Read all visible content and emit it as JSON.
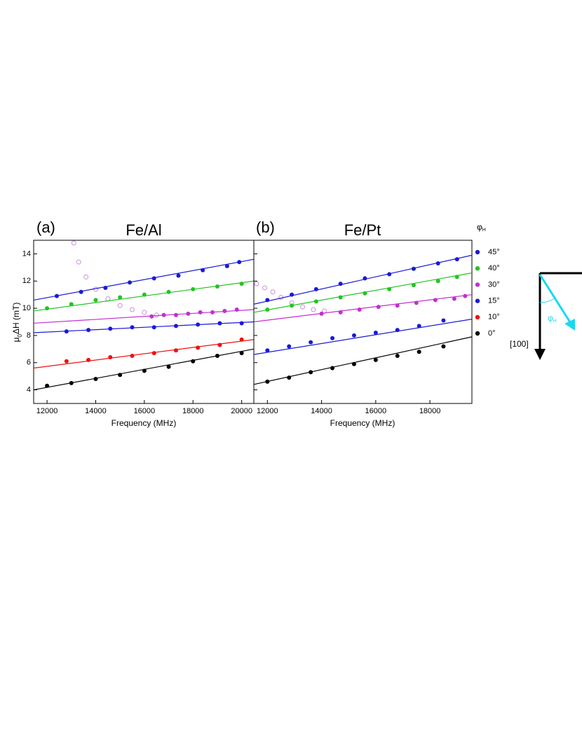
{
  "chart_data": [
    {
      "type": "scatter",
      "panel_label": "(a)",
      "title": "Fe/Al",
      "x_label": "Frequency (MHz)",
      "y_label": {
        "main": "μ",
        "sub": "0",
        "rest": "ΔH (mT)"
      },
      "legend_title": {
        "main": "φ",
        "sub": "H"
      },
      "xlim": [
        11450,
        20500
      ],
      "xticks": [
        12000,
        14000,
        16000,
        18000,
        20000
      ],
      "ylim": [
        3,
        15
      ],
      "yticks": [
        4,
        6,
        8,
        10,
        12,
        14
      ],
      "ytick_labels": true,
      "series": [
        {
          "name": "45°",
          "color": "#1a1ad6",
          "x": [
            12400,
            13400,
            14400,
            15400,
            16400,
            17400,
            18400,
            19400,
            19900
          ],
          "values": [
            10.9,
            11.2,
            11.5,
            11.9,
            12.2,
            12.4,
            12.8,
            13.1,
            13.4
          ],
          "fit": {
            "x": [
              11450,
              20500
            ],
            "values": [
              10.6,
              13.6
            ]
          }
        },
        {
          "name": "40°",
          "color": "#22c422",
          "x": [
            12000,
            13000,
            14000,
            15000,
            16000,
            17000,
            18000,
            19000,
            20000
          ],
          "values": [
            10.0,
            10.3,
            10.6,
            10.8,
            11.0,
            11.2,
            11.4,
            11.6,
            11.8
          ],
          "fit": {
            "x": [
              11450,
              20500
            ],
            "values": [
              9.8,
              12.0
            ]
          }
        },
        {
          "name": "30°",
          "color": "#c030d0",
          "x": [
            16300,
            16800,
            17300,
            17800,
            18300,
            18800,
            19300,
            19800
          ],
          "values": [
            9.4,
            9.5,
            9.5,
            9.6,
            9.7,
            9.7,
            9.8,
            9.9
          ],
          "fit": {
            "x": [
              11450,
              20500
            ],
            "values": [
              8.9,
              9.9
            ]
          }
        },
        {
          "name": "15°",
          "color": "#1a1ad6",
          "x": [
            12800,
            13700,
            14600,
            15500,
            16400,
            17300,
            18200,
            19100,
            20000
          ],
          "values": [
            8.3,
            8.4,
            8.5,
            8.6,
            8.6,
            8.7,
            8.8,
            8.9,
            8.9
          ],
          "fit": {
            "x": [
              11450,
              20500
            ],
            "values": [
              8.2,
              9.0
            ]
          }
        },
        {
          "name": "10°",
          "color": "#ee1111",
          "x": [
            12800,
            13700,
            14600,
            15500,
            16400,
            17300,
            18200,
            19100,
            20000
          ],
          "values": [
            6.1,
            6.2,
            6.4,
            6.5,
            6.7,
            6.9,
            7.1,
            7.3,
            7.7
          ],
          "fit": {
            "x": [
              11450,
              20500
            ],
            "values": [
              5.6,
              7.7
            ]
          }
        },
        {
          "name": "0°",
          "color": "#000000",
          "x": [
            12000,
            13000,
            14000,
            15000,
            16000,
            17000,
            18000,
            19000,
            20000
          ],
          "values": [
            4.3,
            4.5,
            4.8,
            5.1,
            5.4,
            5.7,
            6.1,
            6.5,
            6.7
          ],
          "fit": {
            "x": [
              11450,
              20500
            ],
            "values": [
              4.0,
              7.0
            ]
          }
        }
      ],
      "open_series": {
        "color": "#c98fd8",
        "x": [
          13100,
          13300,
          13600,
          14000,
          14500,
          15000,
          15500,
          16000,
          16500
        ],
        "values": [
          14.8,
          13.4,
          12.3,
          11.4,
          10.7,
          10.2,
          9.9,
          9.7,
          9.5
        ]
      }
    },
    {
      "type": "scatter",
      "panel_label": "(b)",
      "title": "Fe/Pt",
      "x_label": "Frequency (MHz)",
      "xlim": [
        11500,
        19550
      ],
      "xticks": [
        12000,
        14000,
        16000,
        18000
      ],
      "ylim": [
        3,
        15
      ],
      "yticks": [
        4,
        6,
        8,
        10,
        12,
        14
      ],
      "ytick_labels": false,
      "series": [
        {
          "color": "#1a1ad6",
          "x": [
            12000,
            12900,
            13800,
            14700,
            15600,
            16500,
            17400,
            18300,
            19000
          ],
          "values": [
            10.6,
            11.0,
            11.4,
            11.8,
            12.2,
            12.5,
            12.9,
            13.3,
            13.6
          ],
          "fit": {
            "x": [
              11500,
              19550
            ],
            "values": [
              10.3,
              13.9
            ]
          }
        },
        {
          "color": "#22c422",
          "x": [
            12000,
            12900,
            13800,
            14700,
            15600,
            16500,
            17400,
            18300,
            19000
          ],
          "values": [
            9.9,
            10.2,
            10.5,
            10.8,
            11.1,
            11.4,
            11.7,
            12.0,
            12.3
          ],
          "fit": {
            "x": [
              11500,
              19550
            ],
            "values": [
              9.7,
              12.6
            ]
          }
        },
        {
          "color": "#c030d0",
          "x": [
            14000,
            14700,
            15400,
            16100,
            16800,
            17500,
            18200,
            18900,
            19300
          ],
          "values": [
            9.6,
            9.7,
            9.9,
            10.1,
            10.2,
            10.4,
            10.6,
            10.7,
            10.9
          ],
          "fit": {
            "x": [
              11500,
              19550
            ],
            "values": [
              9.0,
              11.0
            ]
          }
        },
        {
          "color": "#1a1ad6",
          "x": [
            12000,
            12800,
            13600,
            14400,
            15200,
            16000,
            16800,
            17600,
            18500
          ],
          "values": [
            6.9,
            7.2,
            7.5,
            7.8,
            8.0,
            8.2,
            8.4,
            8.7,
            9.1
          ],
          "fit": {
            "x": [
              11500,
              19550
            ],
            "values": [
              6.6,
              9.2
            ]
          }
        },
        {
          "color": "#000000",
          "x": [
            12000,
            12800,
            13600,
            14400,
            15200,
            16000,
            16800,
            17600,
            18500
          ],
          "values": [
            4.6,
            4.9,
            5.3,
            5.6,
            5.9,
            6.2,
            6.5,
            6.8,
            7.2
          ],
          "fit": {
            "x": [
              11500,
              19550
            ],
            "values": [
              4.4,
              7.9
            ]
          }
        }
      ],
      "open_series": {
        "color": "#c98fd8",
        "x": [
          11600,
          11900,
          12200,
          12500,
          12900,
          13300,
          13700,
          14100
        ],
        "values": [
          11.8,
          11.5,
          11.2,
          10.8,
          10.4,
          10.1,
          9.9,
          9.8
        ]
      }
    }
  ],
  "diagram": {
    "axis_label": "[100]",
    "angle_label": {
      "main": "φ",
      "sub": "H"
    }
  }
}
